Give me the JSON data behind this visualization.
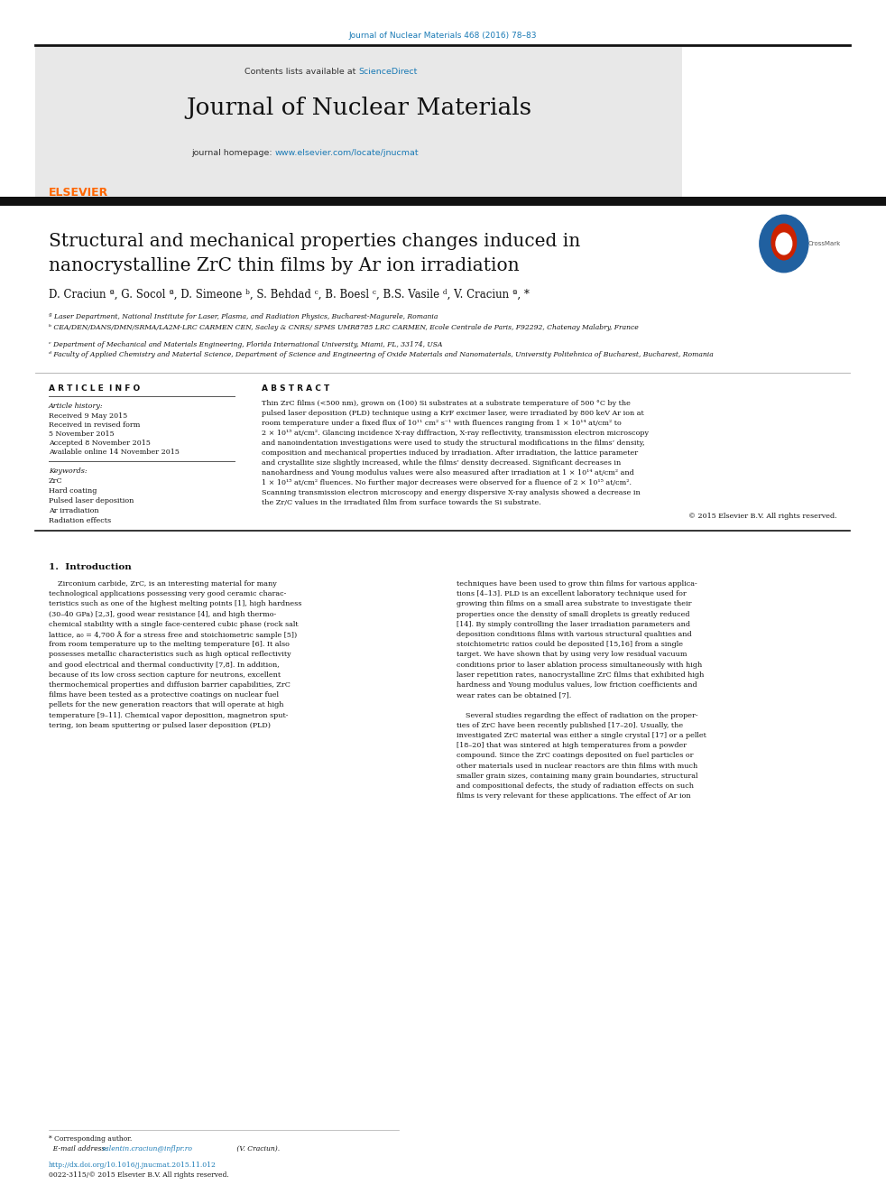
{
  "page_width": 9.92,
  "page_height": 13.23,
  "bg_color": "#ffffff",
  "top_journal_ref": "Journal of Nuclear Materials 468 (2016) 78–83",
  "top_journal_ref_color": "#1a7ab5",
  "header_bg": "#e8e8e8",
  "header_text": "Contents lists available at ",
  "header_sciencedirect": "ScienceDirect",
  "header_sciencedirect_color": "#1a7ab5",
  "journal_name": "Journal of Nuclear Materials",
  "journal_homepage_text": "journal homepage: ",
  "journal_url": "www.elsevier.com/locate/jnucmat",
  "journal_url_color": "#1a7ab5",
  "thick_bar_color": "#1a1a1a",
  "article_title_line1": "Structural and mechanical properties changes induced in",
  "article_title_line2": "nanocrystalline ZrC thin films by Ar ion irradiation",
  "authors": "D. Craciun ª, G. Socol ª, D. Simeone ᵇ, S. Behdad ᶜ, B. Boesl ᶜ, B.S. Vasile ᵈ, V. Craciun ª, *",
  "affil_a": "ª Laser Department, National Institute for Laser, Plasma, and Radiation Physics, Bucharest-Magurele, Romania",
  "affil_b": "ᵇ CEA/DEN/DANS/DMN/SRMA/LA2M-LRC CARMEN CEN, Saclay & CNRS/ SPMS UMR8785 LRC CARMEN, Ecole Centrale de Paris, F92292, Chatenay Malabry, France",
  "affil_c": "ᶜ Department of Mechanical and Materials Engineering, Florida International University, Miami, FL, 33174, USA",
  "affil_d": "ᵈ Faculty of Applied Chemistry and Material Science, Department of Science and Engineering of Oxide Materials and Nanomaterials, University Politehnica of Bucharest, Bucharest, Romania",
  "article_info_title": "A R T I C L E  I N F O",
  "abstract_title": "A B S T R A C T",
  "article_history_label": "Article history:",
  "received1": "Received 9 May 2015",
  "received2": "Received in revised form",
  "received2b": "5 November 2015",
  "accepted": "Accepted 8 November 2015",
  "available": "Available online 14 November 2015",
  "keywords_label": "Keywords:",
  "keyword1": "ZrC",
  "keyword2": "Hard coating",
  "keyword3": "Pulsed laser deposition",
  "keyword4": "Ar irradiation",
  "keyword5": "Radiation effects",
  "copyright": "© 2015 Elsevier B.V. All rights reserved.",
  "section1_title": "1.  Introduction",
  "footer_note": "* Corresponding author.",
  "footer_email_label": "  E-mail address: ",
  "footer_email": "valentin.craciun@inflpr.ro",
  "footer_email_suffix": " (V. Craciun).",
  "footer_doi": "http://dx.doi.org/10.1016/j.jnucmat.2015.11.012",
  "footer_issn": "0022-3115/© 2015 Elsevier B.V. All rights reserved.",
  "link_color": "#1a7ab5",
  "text_color": "#1a1a1a",
  "elsevier_color": "#ff6600",
  "abstract_lines": [
    "Thin ZrC films (<500 nm), grown on (100) Si substrates at a substrate temperature of 500 °C by the",
    "pulsed laser deposition (PLD) technique using a KrF excimer laser, were irradiated by 800 keV Ar ion at",
    "room temperature under a fixed flux of 10¹¹ cm² s⁻¹ with fluences ranging from 1 × 10¹⁴ at/cm² to",
    "2 × 10¹⁵ at/cm². Glancing incidence X-ray diffraction, X-ray reflectivity, transmission electron microscopy",
    "and nanoindentation investigations were used to study the structural modifications in the films’ density,",
    "composition and mechanical properties induced by irradiation. After irradiation, the lattice parameter",
    "and crystallite size slightly increased, while the films’ density decreased. Significant decreases in",
    "nanohardness and Young modulus values were also measured after irradiation at 1 × 10¹⁴ at/cm² and",
    "1 × 10¹⁵ at/cm² fluences. No further major decreases were observed for a fluence of 2 × 10¹⁵ at/cm².",
    "Scanning transmission electron microscopy and energy dispersive X-ray analysis showed a decrease in",
    "the Zr/C values in the irradiated film from surface towards the Si substrate."
  ],
  "intro_col1_lines": [
    "    Zirconium carbide, ZrC, is an interesting material for many",
    "technological applications possessing very good ceramic charac-",
    "teristics such as one of the highest melting points [1], high hardness",
    "(30–40 GPa) [2,3], good wear resistance [4], and high thermo-",
    "chemical stability with a single face-centered cubic phase (rock salt",
    "lattice, a₀ = 4,700 Å for a stress free and stoichiometric sample [5])",
    "from room temperature up to the melting temperature [6]. It also",
    "possesses metallic characteristics such as high optical reflectivity",
    "and good electrical and thermal conductivity [7,8]. In addition,",
    "because of its low cross section capture for neutrons, excellent",
    "thermochemical properties and diffusion barrier capabilities, ZrC",
    "films have been tested as a protective coatings on nuclear fuel",
    "pellets for the new generation reactors that will operate at high",
    "temperature [9–11]. Chemical vapor deposition, magnetron sput-",
    "tering, ion beam sputtering or pulsed laser deposition (PLD)"
  ],
  "intro_col2_lines": [
    "techniques have been used to grow thin films for various applica-",
    "tions [4–13]. PLD is an excellent laboratory technique used for",
    "growing thin films on a small area substrate to investigate their",
    "properties once the density of small droplets is greatly reduced",
    "[14]. By simply controlling the laser irradiation parameters and",
    "deposition conditions films with various structural qualities and",
    "stoichiometric ratios could be deposited [15,16] from a single",
    "target. We have shown that by using very low residual vacuum",
    "conditions prior to laser ablation process simultaneously with high",
    "laser repetition rates, nanocrystalline ZrC films that exhibited high",
    "hardness and Young modulus values, low friction coefficients and",
    "wear rates can be obtained [7].",
    "",
    "    Several studies regarding the effect of radiation on the proper-",
    "ties of ZrC have been recently published [17–20]. Usually, the",
    "investigated ZrC material was either a single crystal [17] or a pellet",
    "[18–20] that was sintered at high temperatures from a powder",
    "compound. Since the ZrC coatings deposited on fuel particles or",
    "other materials used in nuclear reactors are thin films with much",
    "smaller grain sizes, containing many grain boundaries, structural",
    "and compositional defects, the study of radiation effects on such",
    "films is very relevant for these applications. The effect of Ar ion"
  ]
}
